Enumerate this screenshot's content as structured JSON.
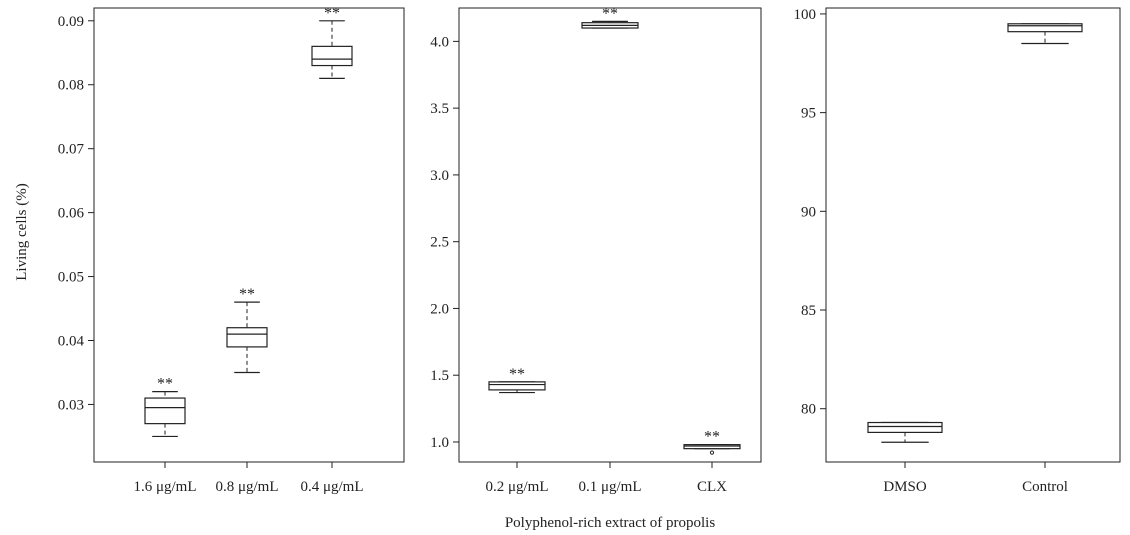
{
  "ylabel": "Living cells (%)",
  "xlabel": "Polyphenol-rich extract of propolis",
  "chart_data": [
    {
      "type": "box",
      "ylim": [
        0.021,
        0.092
      ],
      "yticks": [
        0.03,
        0.04,
        0.05,
        0.06,
        0.07,
        0.08,
        0.09
      ],
      "ytick_labels": [
        "0.03",
        "0.04",
        "0.05",
        "0.06",
        "0.07",
        "0.08",
        "0.09"
      ],
      "categories": [
        {
          "label": "1.6 μg/mL",
          "min": 0.025,
          "q1": 0.027,
          "median": 0.0295,
          "q3": 0.031,
          "max": 0.032,
          "outliers": [],
          "annotation": "**"
        },
        {
          "label": "0.8 μg/mL",
          "min": 0.035,
          "q1": 0.039,
          "median": 0.041,
          "q3": 0.042,
          "max": 0.046,
          "outliers": [],
          "annotation": "**"
        },
        {
          "label": "0.4 μg/mL",
          "min": 0.081,
          "q1": 0.083,
          "median": 0.084,
          "q3": 0.086,
          "max": 0.09,
          "outliers": [],
          "annotation": "**"
        }
      ]
    },
    {
      "type": "box",
      "ylim": [
        0.85,
        4.25
      ],
      "yticks": [
        1.0,
        1.5,
        2.0,
        2.5,
        3.0,
        3.5,
        4.0
      ],
      "ytick_labels": [
        "1.0",
        "1.5",
        "2.0",
        "2.5",
        "3.0",
        "3.5",
        "4.0"
      ],
      "categories": [
        {
          "label": "0.2 μg/mL",
          "min": 1.37,
          "q1": 1.39,
          "median": 1.43,
          "q3": 1.45,
          "max": 1.45,
          "outliers": [],
          "annotation": "**"
        },
        {
          "label": "0.1 μg/mL",
          "min": 4.1,
          "q1": 4.1,
          "median": 4.12,
          "q3": 4.14,
          "max": 4.15,
          "outliers": [],
          "annotation": "**"
        },
        {
          "label": "CLX",
          "min": 0.95,
          "q1": 0.95,
          "median": 0.97,
          "q3": 0.98,
          "max": 0.98,
          "outliers": [
            0.92
          ],
          "annotation": "**"
        }
      ]
    },
    {
      "type": "box",
      "ylim": [
        77.3,
        100.3
      ],
      "yticks": [
        80,
        85,
        90,
        95,
        100
      ],
      "ytick_labels": [
        "80",
        "85",
        "90",
        "95",
        "100"
      ],
      "categories": [
        {
          "label": "DMSO",
          "min": 78.3,
          "q1": 78.8,
          "median": 79.1,
          "q3": 79.3,
          "max": 79.3,
          "outliers": [],
          "annotation": ""
        },
        {
          "label": "Control",
          "min": 98.5,
          "q1": 99.1,
          "median": 99.4,
          "q3": 99.5,
          "max": 99.5,
          "outliers": [],
          "annotation": ""
        }
      ]
    }
  ]
}
